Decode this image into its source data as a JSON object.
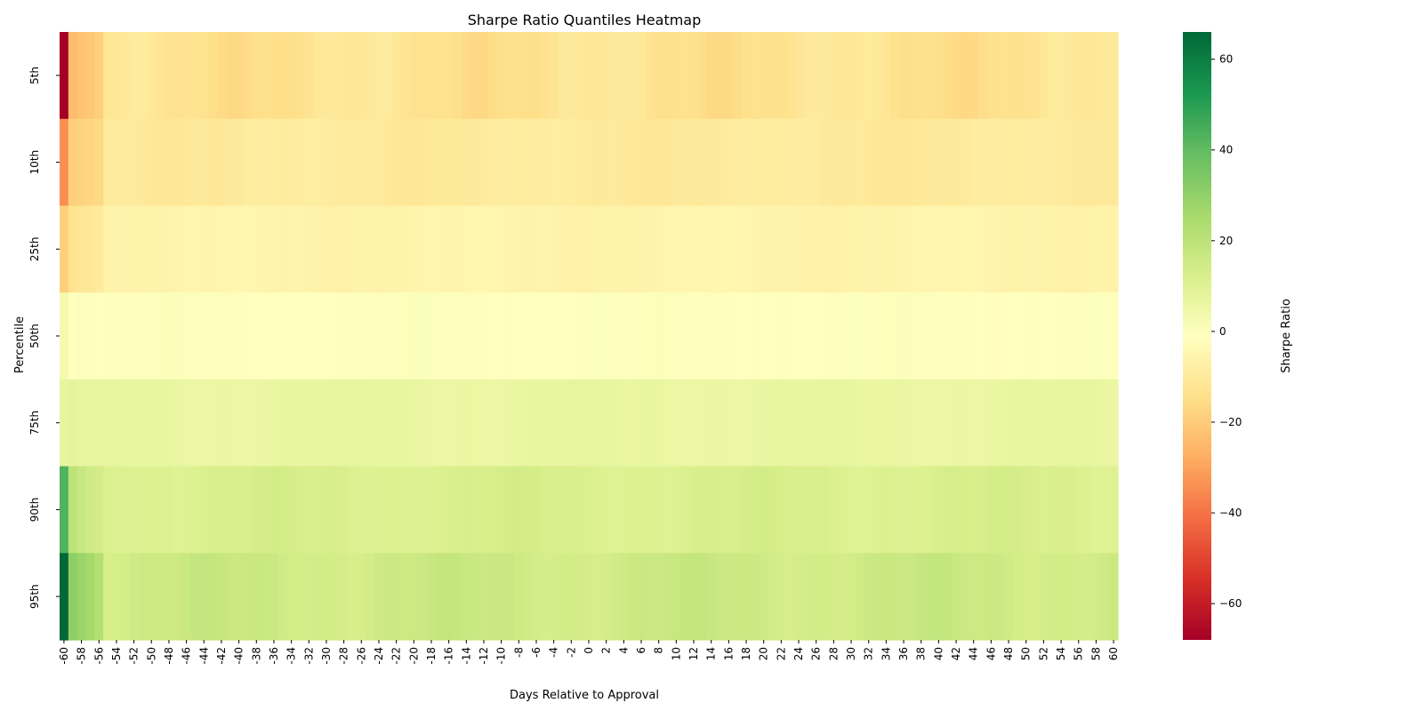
{
  "chart_data": {
    "type": "heatmap",
    "title": "Sharpe Ratio Quantiles Heatmap",
    "xlabel": "Days Relative to Approval",
    "ylabel": "Percentile",
    "colorbar_label": "Sharpe Ratio",
    "colormap": "RdYlGn",
    "vmin": -68,
    "vmax": 66,
    "colorbar_ticks": [
      60,
      40,
      20,
      0,
      -20,
      -40,
      -60
    ],
    "colorbar_tick_labels": [
      "60",
      "40",
      "20",
      "0",
      "−20",
      "−40",
      "−60"
    ],
    "rows": [
      "5th",
      "10th",
      "25th",
      "50th",
      "75th",
      "90th",
      "95th"
    ],
    "x_start": -60,
    "x_end": 60,
    "x_tick_step": 2,
    "first_column": [
      -68,
      -34,
      -19,
      3,
      7,
      43,
      66
    ],
    "row_transition": [
      [
        -24,
        -22,
        -21,
        -19
      ],
      [
        -19,
        -18,
        -17,
        -16
      ],
      [
        -13,
        -12,
        -11,
        -10
      ],
      [
        -1,
        0,
        0,
        -1
      ],
      [
        8,
        7,
        7,
        7
      ],
      [
        20,
        17,
        15,
        14
      ],
      [
        31,
        28,
        26,
        22
      ]
    ],
    "row_base": [
      -13,
      -10,
      -6,
      -0.5,
      6.5,
      12,
      15.5
    ],
    "row_variation": [
      2.5,
      1.2,
      0.8,
      0.6,
      0.6,
      1.5,
      2.0
    ]
  }
}
